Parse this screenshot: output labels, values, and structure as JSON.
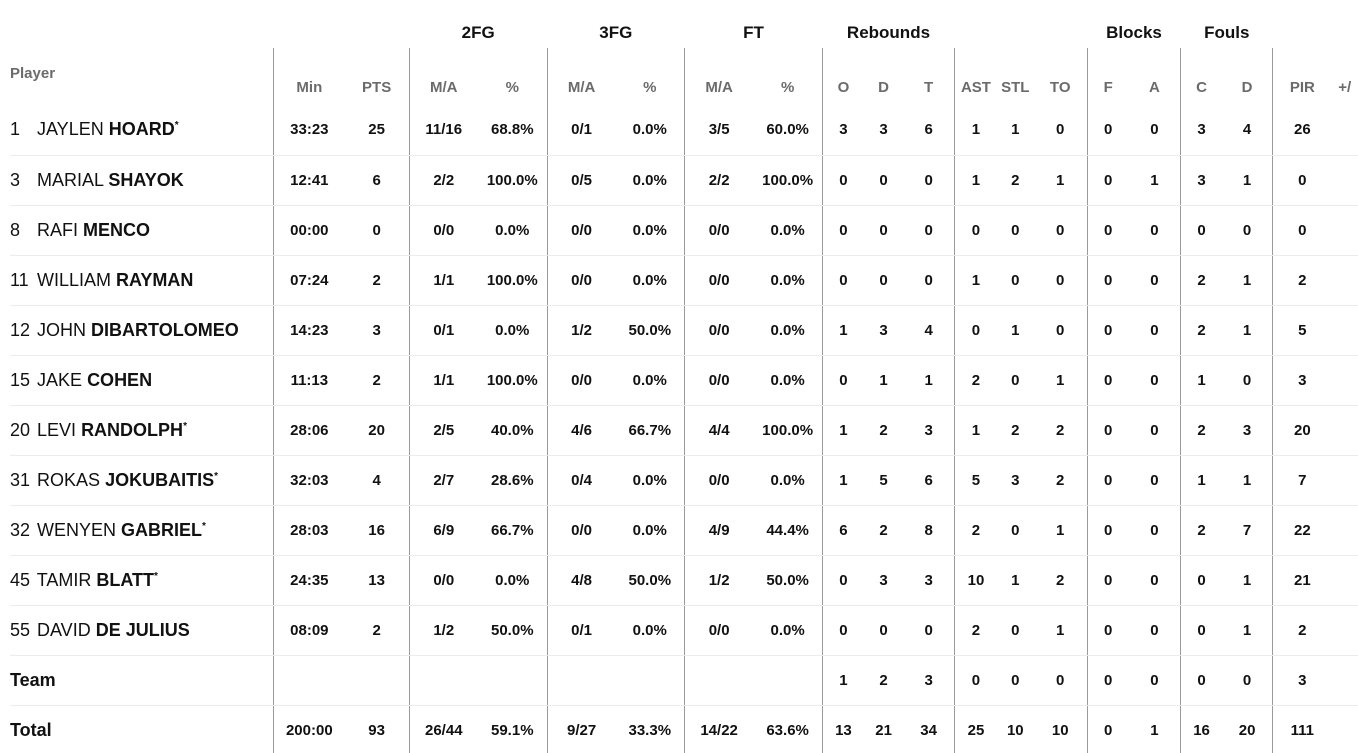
{
  "groups": {
    "fg2": "2FG",
    "fg3": "3FG",
    "ft": "FT",
    "rebounds": "Rebounds",
    "blocks": "Blocks",
    "fouls": "Fouls"
  },
  "columns": {
    "player": "Player",
    "min": "Min",
    "pts": "PTS",
    "fg2_ma": "M/A",
    "fg2_pct": "%",
    "fg3_ma": "M/A",
    "fg3_pct": "%",
    "ft_ma": "M/A",
    "ft_pct": "%",
    "reb_o": "O",
    "reb_d": "D",
    "reb_t": "T",
    "ast": "AST",
    "stl": "STL",
    "to": "TO",
    "blk_f": "F",
    "blk_a": "A",
    "foul_c": "C",
    "foul_d": "D",
    "pir": "PIR",
    "pm": "+/"
  },
  "players": [
    {
      "number": "1",
      "first": "JAYLEN",
      "last": "HOARD",
      "starter": "*",
      "min": "33:23",
      "pts": "25",
      "fg2_ma": "11/16",
      "fg2_pct": "68.8%",
      "fg3_ma": "0/1",
      "fg3_pct": "0.0%",
      "ft_ma": "3/5",
      "ft_pct": "60.0%",
      "reb_o": "3",
      "reb_d": "3",
      "reb_t": "6",
      "ast": "1",
      "stl": "1",
      "to": "0",
      "blk_f": "0",
      "blk_a": "0",
      "foul_c": "3",
      "foul_d": "4",
      "pir": "26"
    },
    {
      "number": "3",
      "first": "MARIAL",
      "last": "SHAYOK",
      "starter": "",
      "min": "12:41",
      "pts": "6",
      "fg2_ma": "2/2",
      "fg2_pct": "100.0%",
      "fg3_ma": "0/5",
      "fg3_pct": "0.0%",
      "ft_ma": "2/2",
      "ft_pct": "100.0%",
      "reb_o": "0",
      "reb_d": "0",
      "reb_t": "0",
      "ast": "1",
      "stl": "2",
      "to": "1",
      "blk_f": "0",
      "blk_a": "1",
      "foul_c": "3",
      "foul_d": "1",
      "pir": "0"
    },
    {
      "number": "8",
      "first": "RAFI",
      "last": "MENCO",
      "starter": "",
      "min": "00:00",
      "pts": "0",
      "fg2_ma": "0/0",
      "fg2_pct": "0.0%",
      "fg3_ma": "0/0",
      "fg3_pct": "0.0%",
      "ft_ma": "0/0",
      "ft_pct": "0.0%",
      "reb_o": "0",
      "reb_d": "0",
      "reb_t": "0",
      "ast": "0",
      "stl": "0",
      "to": "0",
      "blk_f": "0",
      "blk_a": "0",
      "foul_c": "0",
      "foul_d": "0",
      "pir": "0"
    },
    {
      "number": "11",
      "first": "WILLIAM",
      "last": "RAYMAN",
      "starter": "",
      "min": "07:24",
      "pts": "2",
      "fg2_ma": "1/1",
      "fg2_pct": "100.0%",
      "fg3_ma": "0/0",
      "fg3_pct": "0.0%",
      "ft_ma": "0/0",
      "ft_pct": "0.0%",
      "reb_o": "0",
      "reb_d": "0",
      "reb_t": "0",
      "ast": "1",
      "stl": "0",
      "to": "0",
      "blk_f": "0",
      "blk_a": "0",
      "foul_c": "2",
      "foul_d": "1",
      "pir": "2"
    },
    {
      "number": "12",
      "first": "JOHN",
      "last": "DIBARTOLOMEO",
      "starter": "",
      "min": "14:23",
      "pts": "3",
      "fg2_ma": "0/1",
      "fg2_pct": "0.0%",
      "fg3_ma": "1/2",
      "fg3_pct": "50.0%",
      "ft_ma": "0/0",
      "ft_pct": "0.0%",
      "reb_o": "1",
      "reb_d": "3",
      "reb_t": "4",
      "ast": "0",
      "stl": "1",
      "to": "0",
      "blk_f": "0",
      "blk_a": "0",
      "foul_c": "2",
      "foul_d": "1",
      "pir": "5"
    },
    {
      "number": "15",
      "first": "JAKE",
      "last": "COHEN",
      "starter": "",
      "min": "11:13",
      "pts": "2",
      "fg2_ma": "1/1",
      "fg2_pct": "100.0%",
      "fg3_ma": "0/0",
      "fg3_pct": "0.0%",
      "ft_ma": "0/0",
      "ft_pct": "0.0%",
      "reb_o": "0",
      "reb_d": "1",
      "reb_t": "1",
      "ast": "2",
      "stl": "0",
      "to": "1",
      "blk_f": "0",
      "blk_a": "0",
      "foul_c": "1",
      "foul_d": "0",
      "pir": "3"
    },
    {
      "number": "20",
      "first": "LEVI",
      "last": "RANDOLPH",
      "starter": "*",
      "min": "28:06",
      "pts": "20",
      "fg2_ma": "2/5",
      "fg2_pct": "40.0%",
      "fg3_ma": "4/6",
      "fg3_pct": "66.7%",
      "ft_ma": "4/4",
      "ft_pct": "100.0%",
      "reb_o": "1",
      "reb_d": "2",
      "reb_t": "3",
      "ast": "1",
      "stl": "2",
      "to": "2",
      "blk_f": "0",
      "blk_a": "0",
      "foul_c": "2",
      "foul_d": "3",
      "pir": "20"
    },
    {
      "number": "31",
      "first": "ROKAS",
      "last": "JOKUBAITIS",
      "starter": "*",
      "min": "32:03",
      "pts": "4",
      "fg2_ma": "2/7",
      "fg2_pct": "28.6%",
      "fg3_ma": "0/4",
      "fg3_pct": "0.0%",
      "ft_ma": "0/0",
      "ft_pct": "0.0%",
      "reb_o": "1",
      "reb_d": "5",
      "reb_t": "6",
      "ast": "5",
      "stl": "3",
      "to": "2",
      "blk_f": "0",
      "blk_a": "0",
      "foul_c": "1",
      "foul_d": "1",
      "pir": "7"
    },
    {
      "number": "32",
      "first": "WENYEN",
      "last": "GABRIEL",
      "starter": "*",
      "min": "28:03",
      "pts": "16",
      "fg2_ma": "6/9",
      "fg2_pct": "66.7%",
      "fg3_ma": "0/0",
      "fg3_pct": "0.0%",
      "ft_ma": "4/9",
      "ft_pct": "44.4%",
      "reb_o": "6",
      "reb_d": "2",
      "reb_t": "8",
      "ast": "2",
      "stl": "0",
      "to": "1",
      "blk_f": "0",
      "blk_a": "0",
      "foul_c": "2",
      "foul_d": "7",
      "pir": "22"
    },
    {
      "number": "45",
      "first": "TAMIR",
      "last": "BLATT",
      "starter": "*",
      "min": "24:35",
      "pts": "13",
      "fg2_ma": "0/0",
      "fg2_pct": "0.0%",
      "fg3_ma": "4/8",
      "fg3_pct": "50.0%",
      "ft_ma": "1/2",
      "ft_pct": "50.0%",
      "reb_o": "0",
      "reb_d": "3",
      "reb_t": "3",
      "ast": "10",
      "stl": "1",
      "to": "2",
      "blk_f": "0",
      "blk_a": "0",
      "foul_c": "0",
      "foul_d": "1",
      "pir": "21"
    },
    {
      "number": "55",
      "first": "DAVID",
      "last": "DE JULIUS",
      "starter": "",
      "min": "08:09",
      "pts": "2",
      "fg2_ma": "1/2",
      "fg2_pct": "50.0%",
      "fg3_ma": "0/1",
      "fg3_pct": "0.0%",
      "ft_ma": "0/0",
      "ft_pct": "0.0%",
      "reb_o": "0",
      "reb_d": "0",
      "reb_t": "0",
      "ast": "2",
      "stl": "0",
      "to": "1",
      "blk_f": "0",
      "blk_a": "0",
      "foul_c": "0",
      "foul_d": "1",
      "pir": "2"
    }
  ],
  "team": {
    "label": "Team",
    "min": "",
    "pts": "",
    "fg2_ma": "",
    "fg2_pct": "",
    "fg3_ma": "",
    "fg3_pct": "",
    "ft_ma": "",
    "ft_pct": "",
    "reb_o": "1",
    "reb_d": "2",
    "reb_t": "3",
    "ast": "0",
    "stl": "0",
    "to": "0",
    "blk_f": "0",
    "blk_a": "0",
    "foul_c": "0",
    "foul_d": "0",
    "pir": "3"
  },
  "total": {
    "label": "Total",
    "min": "200:00",
    "pts": "93",
    "fg2_ma": "26/44",
    "fg2_pct": "59.1%",
    "fg3_ma": "9/27",
    "fg3_pct": "33.3%",
    "ft_ma": "14/22",
    "ft_pct": "63.6%",
    "reb_o": "13",
    "reb_d": "21",
    "reb_t": "34",
    "ast": "25",
    "stl": "10",
    "to": "10",
    "blk_f": "0",
    "blk_a": "1",
    "foul_c": "16",
    "foul_d": "20",
    "pir": "111"
  }
}
